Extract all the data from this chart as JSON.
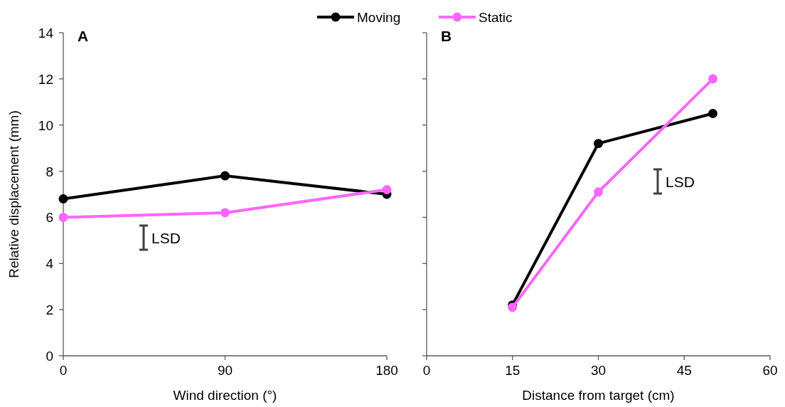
{
  "chart_data": [
    {
      "type": "line",
      "title": "A",
      "xlabel": "Wind direction (°)",
      "ylabel": "Relative displacement (mm)",
      "x": [
        0,
        90,
        180
      ],
      "xlim": [
        0,
        180
      ],
      "xticks": [
        0,
        90,
        180
      ],
      "ylim": [
        0,
        14
      ],
      "yticks": [
        0,
        2,
        4,
        6,
        8,
        10,
        12,
        14
      ],
      "marker": "circle",
      "legend": "top",
      "grid": false,
      "series": [
        {
          "name": "Moving",
          "color": "#000000",
          "values": [
            6.8,
            7.8,
            7.0
          ]
        },
        {
          "name": "Static",
          "color": "#ff66ff",
          "values": [
            6.0,
            6.2,
            7.2
          ]
        }
      ],
      "annotations": [
        "LSD"
      ]
    },
    {
      "type": "line",
      "title": "B",
      "xlabel": "Distance from target (cm)",
      "x": [
        15,
        30,
        50
      ],
      "xlim": [
        0,
        60
      ],
      "xticks": [
        0,
        15,
        30,
        45,
        60
      ],
      "ylim": [
        0,
        14
      ],
      "yticks": [
        0,
        2,
        4,
        6,
        8,
        10,
        12,
        14
      ],
      "tick_labels": "x",
      "marker": "circle",
      "grid": false,
      "series": [
        {
          "name": "Moving",
          "color": "#000000",
          "values": [
            2.2,
            9.2,
            10.5
          ]
        },
        {
          "name": "Static",
          "color": "#ff66ff",
          "values": [
            2.1,
            7.1,
            12.0
          ]
        }
      ],
      "annotations": [
        "LSD"
      ]
    }
  ]
}
